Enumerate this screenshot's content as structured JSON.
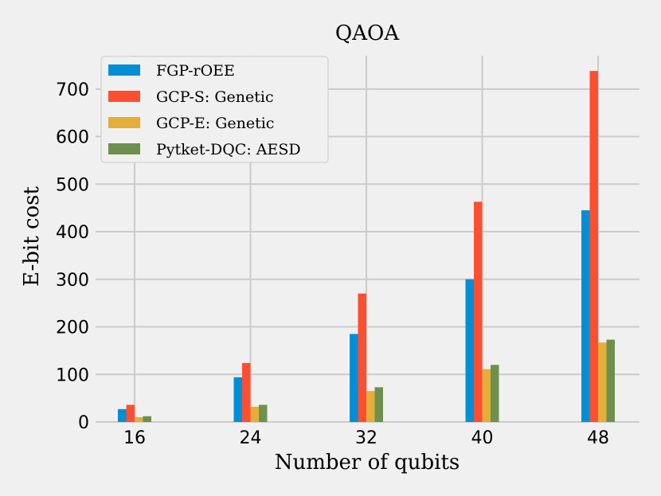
{
  "chart_data": {
    "type": "bar",
    "title": "QAOA",
    "xlabel": "Number of qubits",
    "ylabel": "E-bit cost",
    "categories": [
      "16",
      "24",
      "32",
      "40",
      "48"
    ],
    "ylim": [
      0,
      770
    ],
    "yticks": [
      0,
      100,
      200,
      300,
      400,
      500,
      600,
      700
    ],
    "grid": true,
    "legend_position": "top-left",
    "series": [
      {
        "name": "FGP-rOEE",
        "color": "#008fd5",
        "values": [
          27,
          94,
          185,
          300,
          445
        ]
      },
      {
        "name": "GCP-S: Genetic",
        "color": "#fc4f30",
        "values": [
          36,
          124,
          270,
          463,
          738
        ]
      },
      {
        "name": "GCP-E: Genetic",
        "color": "#e5ae38",
        "values": [
          10,
          32,
          65,
          111,
          167
        ]
      },
      {
        "name": "Pytket-DQC: AESD",
        "color": "#6d904f",
        "values": [
          12,
          36,
          73,
          120,
          173
        ]
      }
    ]
  }
}
